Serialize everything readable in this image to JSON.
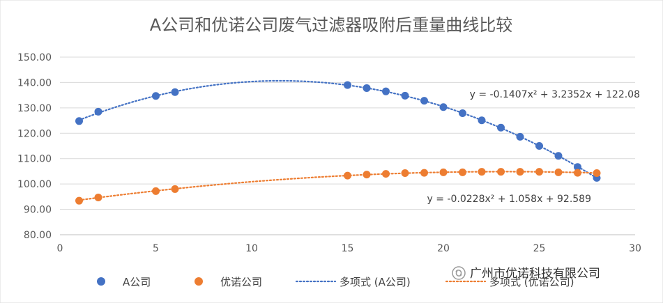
{
  "colors": {
    "series_a": "#4472C4",
    "series_b": "#ED7D31",
    "grid": "#D9D9D9",
    "text": "#595959"
  },
  "watermark": {
    "text": "广州市优诺科技有限公司",
    "icon": "wechat-official-account-icon"
  },
  "chart_data": {
    "type": "scatter",
    "title": "A公司和优诺公司废气过滤器吸附后重量曲线比较",
    "xlabel": "",
    "ylabel": "",
    "xlim": [
      0,
      30
    ],
    "ylim": [
      80,
      150
    ],
    "x_ticks": [
      "0",
      "5",
      "10",
      "15",
      "20",
      "25",
      "30"
    ],
    "y_ticks": [
      "80.00",
      "90.00",
      "100.00",
      "110.00",
      "120.00",
      "130.00",
      "140.00",
      "150.00"
    ],
    "grid": "horizontal",
    "legend_position": "bottom",
    "series": [
      {
        "name": "A公司",
        "x": [
          1,
          2,
          5,
          6,
          15,
          16,
          17,
          18,
          19,
          20,
          21,
          22,
          23,
          24,
          25,
          26,
          27,
          28
        ],
        "y": [
          124.8,
          128.5,
          134.7,
          136.2,
          139.0,
          137.8,
          136.5,
          134.8,
          132.8,
          130.3,
          127.9,
          125.1,
          122.2,
          118.6,
          115.0,
          111.1,
          106.7,
          102.4
        ]
      },
      {
        "name": "优诺公司",
        "x": [
          1,
          2,
          5,
          6,
          15,
          16,
          17,
          18,
          19,
          20,
          21,
          22,
          23,
          24,
          25,
          26,
          27,
          28
        ],
        "y": [
          93.4,
          94.7,
          97.2,
          98.0,
          103.3,
          103.7,
          104.0,
          104.3,
          104.4,
          104.6,
          104.6,
          104.8,
          104.8,
          104.8,
          104.8,
          104.6,
          104.4,
          104.3
        ]
      }
    ],
    "trendlines": [
      {
        "name": "多项式 (A公司)",
        "coefficients": [
          -0.1407,
          3.2352,
          122.08
        ],
        "x_range": [
          1,
          28
        ],
        "equation": "y = -0.1407x² + 3.2352x + 122.08"
      },
      {
        "name": "多项式 (优诺公司)",
        "coefficients": [
          -0.0228,
          1.058,
          92.589
        ],
        "x_range": [
          1,
          28
        ],
        "equation": "y = -0.0228x² + 1.058x + 92.589"
      }
    ]
  }
}
